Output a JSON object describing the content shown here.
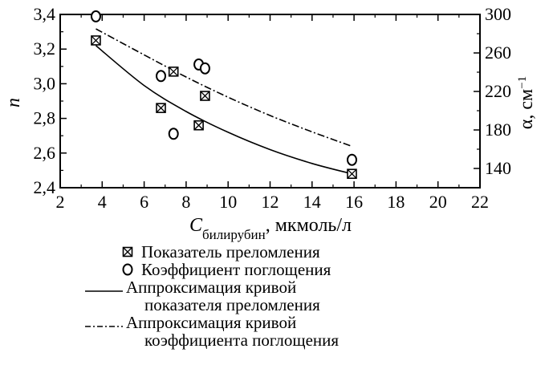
{
  "chart_data": {
    "type": "scatter",
    "xlabel_main": "C",
    "xlabel_sub": "билирубин",
    "xlabel_unit": ", мкмоль/л",
    "ylabel_left": "n",
    "ylabel_right": "α, см",
    "ylabel_right_exp": "−1",
    "xlim": [
      2,
      22
    ],
    "ylim_left": [
      2.4,
      3.4
    ],
    "ylim_right": [
      120,
      300
    ],
    "x_ticks": [
      "2",
      "4",
      "6",
      "8",
      "10",
      "12",
      "14",
      "16",
      "18",
      "20",
      "22"
    ],
    "y_left_ticks": [
      "2,4",
      "2,6",
      "2,8",
      "3,0",
      "3,2",
      "3,4"
    ],
    "y_right_ticks": [
      "140",
      "180",
      "220",
      "260",
      "300"
    ],
    "series": [
      {
        "name": "Показатель преломления",
        "axis": "left",
        "marker": "boxed-x",
        "points": [
          [
            3.7,
            3.25
          ],
          [
            6.8,
            2.86
          ],
          [
            7.4,
            3.07
          ],
          [
            8.6,
            2.76
          ],
          [
            8.9,
            2.93
          ],
          [
            15.9,
            2.48
          ]
        ]
      },
      {
        "name": "Коэффициент поглощения",
        "axis": "right",
        "marker": "circle",
        "points": [
          [
            3.7,
            298
          ],
          [
            6.8,
            236
          ],
          [
            7.4,
            176
          ],
          [
            8.6,
            248
          ],
          [
            8.9,
            244
          ],
          [
            15.9,
            149
          ]
        ]
      }
    ],
    "fits": [
      {
        "axis": "left",
        "style": "solid",
        "x": [
          3.7,
          6,
          8,
          10,
          12,
          14,
          15.9
        ],
        "y": [
          3.22,
          2.99,
          2.84,
          2.72,
          2.62,
          2.54,
          2.48
        ]
      },
      {
        "axis": "right",
        "style": "dashdot",
        "x": [
          3.7,
          6,
          8,
          10,
          12,
          14,
          15.9
        ],
        "y": [
          285,
          258,
          235,
          214,
          195,
          178,
          163
        ]
      }
    ],
    "legend": [
      {
        "marker": "boxed-x",
        "lines": [
          "Показатель преломления"
        ]
      },
      {
        "marker": "circle",
        "lines": [
          "Коэффициент поглощения"
        ]
      },
      {
        "marker": "solid",
        "lines": [
          "Аппроксимация кривой",
          "показателя преломления"
        ]
      },
      {
        "marker": "dashdot",
        "lines": [
          "Аппроксимация кривой",
          "коэффициента поглощения"
        ]
      }
    ]
  }
}
